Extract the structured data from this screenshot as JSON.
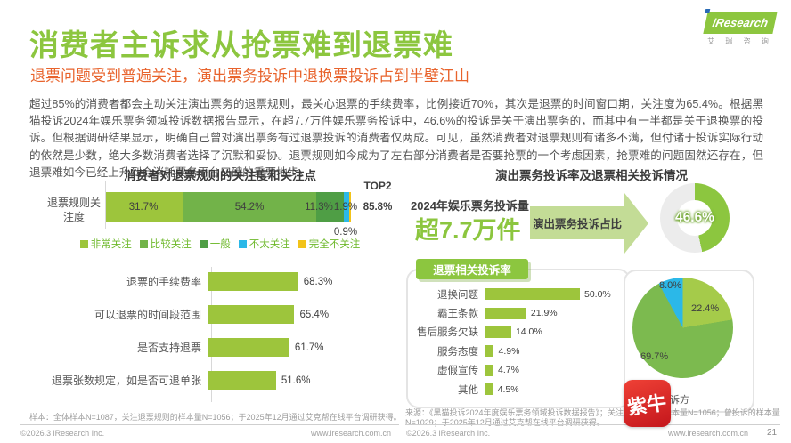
{
  "header": {
    "title": "消费者主诉求从抢票难到退票难",
    "subtitle": "退票问题受到普遍关注，演出票务投诉中退换票投诉占到半壁江山",
    "logo": {
      "brand": "iResearch",
      "brand_cn": "艾 瑞 咨 询"
    }
  },
  "body": {
    "paragraph": "超过85%的消费者都会主动关注演出票务的退票规则，最关心退票的手续费率，比例接近70%，其次是退票的时间窗口期，关注度为65.4%。根据黑猫投诉2024年娱乐票务领域投诉数据报告显示，在超7.7万件娱乐票务投诉中，46.6%的投诉是关于演出票务的，而其中有一半都是关于退换票的投诉。但根据调研结果显示，明确自己曾对演出票务有过退票投诉的消费者仅两成。可见，虽然消费者对退票规则有诸多不满，但付诸于投诉实际行动的依然是少数，绝大多数消费者选择了沉默和妥协。退票规则如今成为了左右部分消费者是否要抢票的一个考虑因素，抢票难的问题固然还存在，但退票难如今已经上升到会消耗票务平台口碑的重要地步。"
  },
  "right_panel": {
    "chart_title": "演出票务投诉率及退票相关投诉情况",
    "volume_label": "2024年娱乐票务投诉量",
    "volume_value": "超7.7万件",
    "arrow_label": "演出票务投诉占比",
    "badge": "退票相关投诉率"
  },
  "chart_data": [
    {
      "type": "bar",
      "subtype": "stacked-horizontal-100",
      "title": "消费者对退票规则的关注度和关注点",
      "category": "退票规则关注度",
      "xlim": [
        0,
        100
      ],
      "series": [
        {
          "name": "非常关注",
          "value": 31.7,
          "label": "31.7%",
          "color": "#9DC53C"
        },
        {
          "name": "比较关注",
          "value": 54.2,
          "label": "54.2%",
          "color": "#72B349"
        },
        {
          "name": "一般",
          "value": 11.3,
          "label": "11.3%",
          "color": "#4F9E45"
        },
        {
          "name": "不太关注",
          "value": 1.9,
          "label": "1.9%",
          "color": "#2BB8E8"
        },
        {
          "name": "完全不关注",
          "value": 0.9,
          "label": "0.9%",
          "color": "#F2C319"
        }
      ],
      "top2": {
        "label": "TOP2",
        "value": 85.8,
        "display": "85.8%"
      }
    },
    {
      "type": "bar",
      "subtype": "horizontal",
      "bar_color": "#9DC53C",
      "rows": [
        {
          "category": "退票的手续费率",
          "value": 68.3,
          "label": "68.3%"
        },
        {
          "category": "可以退票的时间段范围",
          "value": 65.4,
          "label": "65.4%"
        },
        {
          "category": "是否支持退票",
          "value": 61.7,
          "label": "61.7%"
        },
        {
          "category": "退票张数规定，如是否可退单张",
          "value": 51.6,
          "label": "51.6%"
        }
      ]
    },
    {
      "type": "donut",
      "title": "演出票务投诉占比",
      "value": 46.6,
      "label": "46.6%",
      "color": "#8CC63F",
      "track": "#ECECEC"
    },
    {
      "type": "bar",
      "subtype": "horizontal",
      "title": "退票相关投诉率",
      "bar_color": "#9DC53C",
      "rows": [
        {
          "category": "退换问题",
          "value": 50.0,
          "label": "50.0%"
        },
        {
          "category": "霸王条款",
          "value": 21.9,
          "label": "21.9%"
        },
        {
          "category": "售后服务欠缺",
          "value": 14.0,
          "label": "14.0%"
        },
        {
          "category": "服务态度",
          "value": 4.9,
          "label": "4.9%"
        },
        {
          "category": "虚假宣传",
          "value": 4.7,
          "label": "4.7%"
        },
        {
          "category": "其他",
          "value": 4.5,
          "label": "4.5%"
        }
      ]
    },
    {
      "type": "pie",
      "caption": "投诉方",
      "slices": [
        {
          "label": "22.4%",
          "value": 22.4,
          "color": "#A5CB4A"
        },
        {
          "label": "69.7%",
          "value": 69.7,
          "color": "#7CBA4F"
        },
        {
          "label": "8.0%",
          "value": 8.0,
          "color": "#2BB8E8"
        }
      ]
    }
  ],
  "notes": {
    "left": "样本：全体样本N=1087，关注退票规则的样本量N=1056；于2025年12月通过艾克帮在线平台调研获得。",
    "right": "来源：《黑猫投诉2024年度娱乐票务领域投诉数据报告》；关注退票规则的样本量N=1056；曾投诉的样本量N=1029；于2025年12月通过艾克帮在线平台调研获得。"
  },
  "footer": {
    "copyright": "©2026.3 iResearch Inc.",
    "site": "www.iresearch.com.cn",
    "page": "21"
  },
  "watermark": {
    "text": "紫牛"
  }
}
